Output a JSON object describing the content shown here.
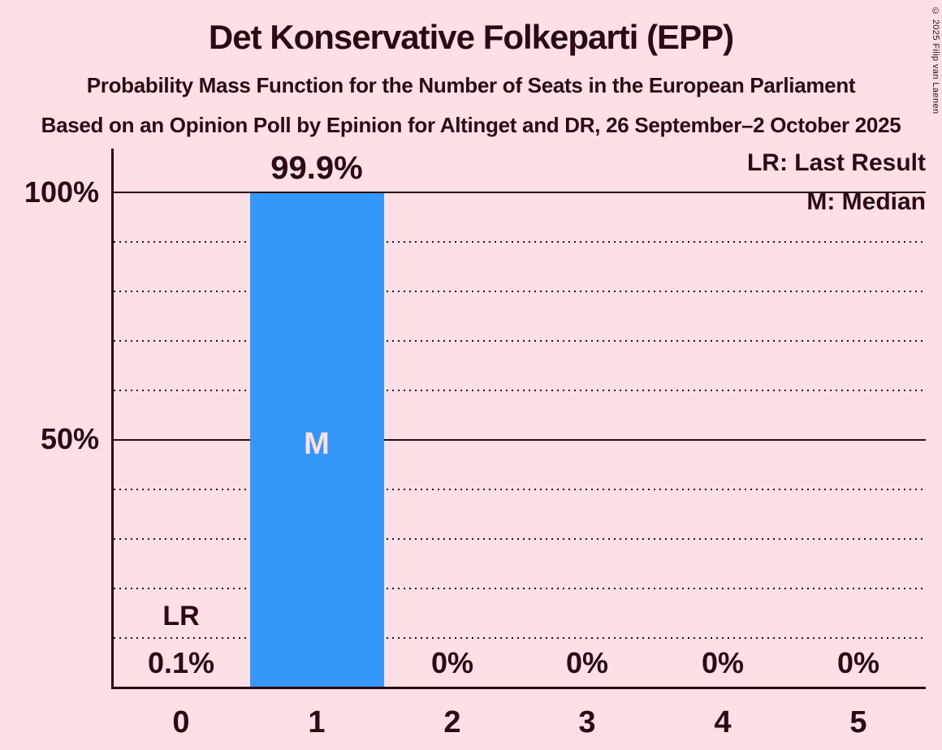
{
  "title": "Det Konservative Folkeparti (EPP)",
  "subtitle": "Probability Mass Function for the Number of Seats in the European Parliament",
  "source_line": "Based on an Opinion Poll by Epinion for Altinget and DR, 26 September–2 October 2025",
  "copyright": "© 2025 Filip van Laenen",
  "legend": {
    "last_result": "LR: Last Result",
    "median": "M: Median"
  },
  "y_axis": {
    "top_label": "100%",
    "mid_label": "50%"
  },
  "annotations": {
    "last_result_marker": "LR",
    "median_marker": "M"
  },
  "colors": {
    "background": "#fde0e5",
    "text": "#2b0a16",
    "bar": "#3498fa",
    "median_label": "#fde0e5"
  },
  "chart_data": {
    "type": "bar",
    "title": "Det Konservative Folkeparti (EPP)",
    "subtitle": "Probability Mass Function for the Number of Seats in the European Parliament",
    "source": "Based on an Opinion Poll by Epinion for Altinget and DR, 26 September–2 October 2025",
    "categories": [
      "0",
      "1",
      "2",
      "3",
      "4",
      "5"
    ],
    "values": [
      0.1,
      99.9,
      0,
      0,
      0,
      0
    ],
    "value_labels": [
      "0.1%",
      "99.9%",
      "0%",
      "0%",
      "0%",
      "0%"
    ],
    "xlabel": "",
    "ylabel": "",
    "ylim": [
      0,
      100
    ],
    "y_tick_labels": [
      "100%",
      "50%"
    ],
    "grid_interval_pct": 10,
    "grid_style": "dotted, solid at 50% and 100%",
    "legend_position": "top-right",
    "median_category": "1",
    "last_result_category": "0"
  }
}
